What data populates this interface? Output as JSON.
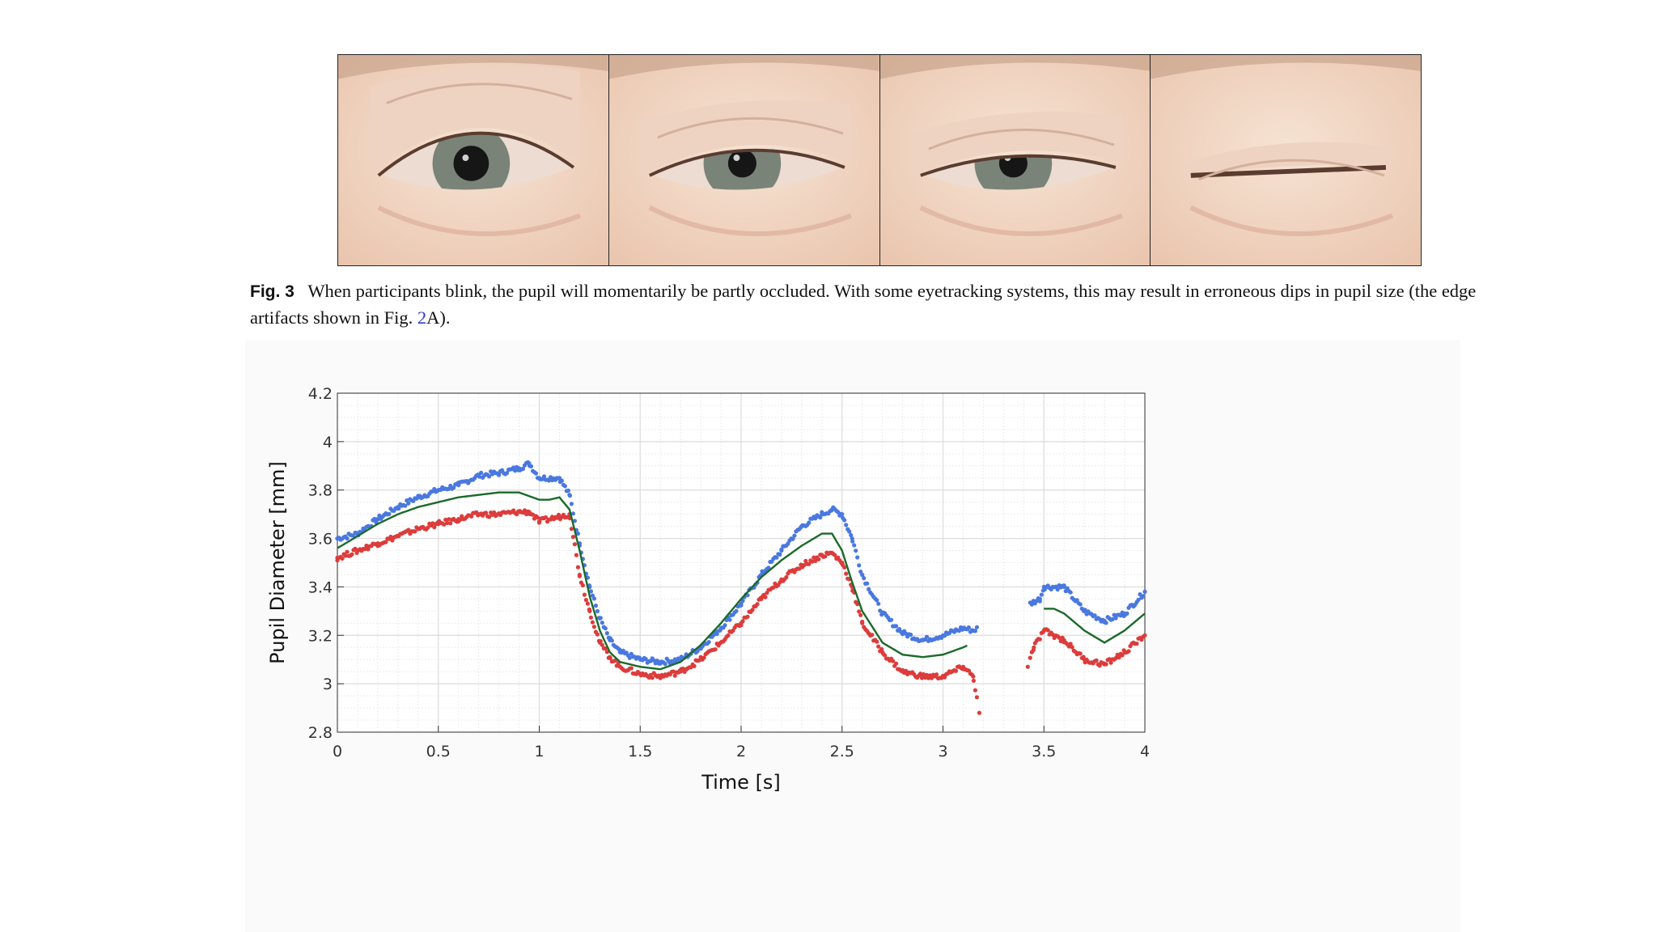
{
  "figure_photos": {
    "frames": [
      "eye-open",
      "eye-closing-1",
      "eye-closing-2",
      "eye-closed"
    ],
    "open_fraction": [
      1.0,
      0.55,
      0.4,
      0.0
    ]
  },
  "caption": {
    "label": "Fig. 3",
    "text_part1": "When participants blink, the pupil will momentarily be partly occluded. With some eyetracking systems, this may result in erroneous dips in pupil size (the edge artifacts shown in Fig. ",
    "ref": "2",
    "text_part2": "A)."
  },
  "colors": {
    "blue_series": "#4a78e0",
    "red_series": "#dc3c3c",
    "green_series": "#1a6a2a",
    "grid": "#dcdcdc",
    "ref_link": "#2a3cc8"
  },
  "chart_data": {
    "type": "scatter",
    "xlabel": "Time [s]",
    "ylabel": "Pupil Diameter [mm]",
    "xlim": [
      0,
      4
    ],
    "ylim": [
      2.8,
      4.2
    ],
    "x_ticks": [
      "0",
      "0.5",
      "1",
      "1.5",
      "2",
      "2.5",
      "3",
      "3.5",
      "4"
    ],
    "y_ticks": [
      "2.8",
      "3",
      "3.2",
      "3.4",
      "3.6",
      "3.8",
      "4",
      "4.2"
    ],
    "grid": true,
    "minor_grid": true,
    "gap": [
      3.17,
      3.43
    ],
    "series": [
      {
        "style": "points",
        "color": "#4a78e0",
        "x": [
          0.0,
          0.1,
          0.2,
          0.3,
          0.4,
          0.5,
          0.6,
          0.7,
          0.8,
          0.9,
          0.95,
          1.0,
          1.1,
          1.15,
          1.2,
          1.25,
          1.3,
          1.35,
          1.4,
          1.5,
          1.6,
          1.7,
          1.8,
          1.9,
          2.0,
          2.1,
          2.2,
          2.3,
          2.4,
          2.45,
          2.5,
          2.55,
          2.6,
          2.7,
          2.8,
          2.9,
          3.0,
          3.1,
          3.15,
          3.48,
          3.5,
          3.6,
          3.7,
          3.8,
          3.9,
          4.0
        ],
        "y": [
          3.6,
          3.62,
          3.68,
          3.73,
          3.77,
          3.8,
          3.82,
          3.86,
          3.87,
          3.89,
          3.91,
          3.85,
          3.85,
          3.78,
          3.58,
          3.4,
          3.27,
          3.18,
          3.13,
          3.1,
          3.09,
          3.1,
          3.15,
          3.23,
          3.33,
          3.45,
          3.55,
          3.65,
          3.7,
          3.72,
          3.7,
          3.6,
          3.45,
          3.29,
          3.21,
          3.18,
          3.2,
          3.23,
          3.22,
          3.35,
          3.4,
          3.4,
          3.3,
          3.26,
          3.29,
          3.38
        ]
      },
      {
        "style": "points",
        "color": "#dc3c3c",
        "x": [
          0.0,
          0.1,
          0.2,
          0.3,
          0.4,
          0.5,
          0.6,
          0.7,
          0.8,
          0.9,
          0.95,
          1.0,
          1.1,
          1.15,
          1.2,
          1.25,
          1.3,
          1.35,
          1.4,
          1.5,
          1.6,
          1.7,
          1.8,
          1.9,
          2.0,
          2.1,
          2.2,
          2.3,
          2.4,
          2.45,
          2.5,
          2.55,
          2.6,
          2.7,
          2.8,
          2.9,
          3.0,
          3.1,
          3.15,
          3.18,
          3.42,
          3.45,
          3.5,
          3.6,
          3.7,
          3.8,
          3.9,
          4.0
        ],
        "y": [
          3.52,
          3.55,
          3.58,
          3.61,
          3.64,
          3.66,
          3.68,
          3.7,
          3.7,
          3.71,
          3.71,
          3.67,
          3.69,
          3.7,
          3.45,
          3.3,
          3.17,
          3.11,
          3.07,
          3.04,
          3.03,
          3.05,
          3.1,
          3.17,
          3.25,
          3.35,
          3.43,
          3.49,
          3.53,
          3.54,
          3.5,
          3.4,
          3.25,
          3.13,
          3.05,
          3.03,
          3.03,
          3.07,
          3.03,
          2.88,
          3.07,
          3.15,
          3.22,
          3.18,
          3.1,
          3.08,
          3.13,
          3.2
        ]
      },
      {
        "style": "line",
        "color": "#1a6a2a",
        "x": [
          0.0,
          0.1,
          0.2,
          0.3,
          0.4,
          0.5,
          0.6,
          0.7,
          0.8,
          0.9,
          1.0,
          1.05,
          1.1,
          1.15,
          1.2,
          1.25,
          1.3,
          1.35,
          1.4,
          1.5,
          1.6,
          1.7,
          1.8,
          1.9,
          2.0,
          2.1,
          2.2,
          2.3,
          2.4,
          2.45,
          2.5,
          2.55,
          2.6,
          2.7,
          2.8,
          2.9,
          3.0,
          3.1,
          3.5,
          3.55,
          3.6,
          3.7,
          3.8,
          3.9,
          4.0
        ],
        "y": [
          3.56,
          3.61,
          3.66,
          3.7,
          3.73,
          3.75,
          3.77,
          3.78,
          3.79,
          3.79,
          3.76,
          3.76,
          3.77,
          3.72,
          3.55,
          3.36,
          3.22,
          3.13,
          3.09,
          3.07,
          3.06,
          3.09,
          3.16,
          3.25,
          3.35,
          3.44,
          3.51,
          3.57,
          3.62,
          3.62,
          3.55,
          3.42,
          3.3,
          3.17,
          3.12,
          3.11,
          3.12,
          3.15,
          3.31,
          3.31,
          3.29,
          3.22,
          3.17,
          3.22,
          3.29
        ]
      }
    ]
  }
}
